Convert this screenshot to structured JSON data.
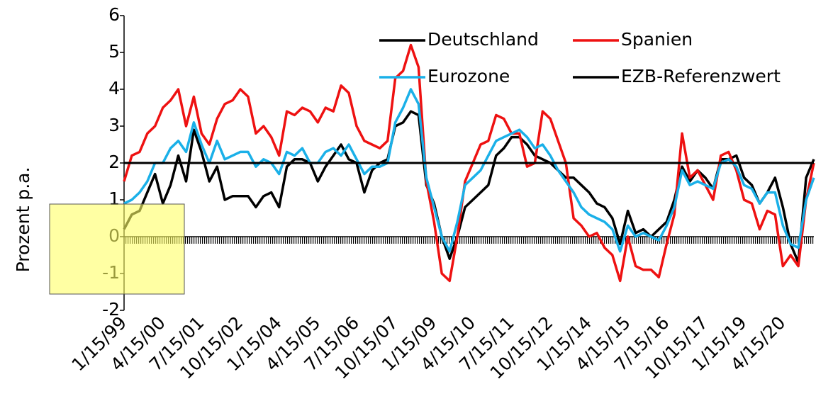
{
  "chart_data": {
    "type": "line",
    "y_label": "Prozent p.a.",
    "categories": [
      "1/15/99",
      null,
      null,
      null,
      null,
      "4/15/00",
      null,
      null,
      null,
      null,
      "7/15/01",
      null,
      null,
      null,
      null,
      "10/15/02",
      null,
      null,
      null,
      null,
      "1/15/04",
      null,
      null,
      null,
      null,
      "4/15/05",
      null,
      null,
      null,
      null,
      "7/15/06",
      null,
      null,
      null,
      null,
      "10/15/07",
      null,
      null,
      null,
      null,
      "1/15/09",
      null,
      null,
      null,
      null,
      "4/15/10",
      null,
      null,
      null,
      null,
      "7/15/11",
      null,
      null,
      null,
      null,
      "10/15/12",
      null,
      null,
      null,
      null,
      "1/15/14",
      null,
      null,
      null,
      null,
      "4/15/15",
      null,
      null,
      null,
      null,
      "7/15/16",
      null,
      null,
      null,
      null,
      "10/15/17",
      null,
      null,
      null,
      null,
      "1/15/19",
      null,
      null,
      null,
      null,
      "4/15/20",
      null,
      null,
      null,
      null
    ],
    "series": [
      {
        "name": "Deutschland",
        "color": "#000000",
        "values": [
          0.2,
          0.6,
          0.7,
          1.2,
          1.7,
          0.9,
          1.4,
          2.2,
          1.5,
          2.9,
          2.3,
          1.5,
          1.9,
          1.0,
          1.1,
          1.1,
          1.1,
          0.8,
          1.1,
          1.2,
          0.8,
          1.9,
          2.1,
          2.1,
          2.0,
          1.5,
          1.9,
          2.2,
          2.5,
          2.1,
          2.0,
          1.2,
          1.8,
          2.0,
          2.1,
          3.0,
          3.1,
          3.4,
          3.3,
          1.4,
          0.9,
          0.0,
          -0.6,
          0.0,
          0.8,
          1.0,
          1.2,
          1.4,
          2.2,
          2.4,
          2.7,
          2.7,
          2.5,
          2.2,
          2.1,
          2.0,
          1.8,
          1.6,
          1.6,
          1.4,
          1.2,
          0.9,
          0.8,
          0.5,
          -0.2,
          0.7,
          0.1,
          0.2,
          0.0,
          0.2,
          0.4,
          1.0,
          1.9,
          1.5,
          1.8,
          1.6,
          1.3,
          2.1,
          2.1,
          2.2,
          1.6,
          1.4,
          0.9,
          1.2,
          1.6,
          0.8,
          -0.2,
          -0.7,
          1.6,
          2.1
        ]
      },
      {
        "name": "Spanien",
        "color": "#ee1111",
        "values": [
          1.5,
          2.2,
          2.3,
          2.8,
          3.0,
          3.5,
          3.7,
          4.0,
          3.0,
          3.8,
          2.8,
          2.5,
          3.2,
          3.6,
          3.7,
          4.0,
          3.8,
          2.8,
          3.0,
          2.7,
          2.2,
          3.4,
          3.3,
          3.5,
          3.4,
          3.1,
          3.5,
          3.4,
          4.1,
          3.9,
          3.0,
          2.6,
          2.5,
          2.4,
          2.6,
          4.3,
          4.5,
          5.2,
          4.6,
          1.5,
          0.4,
          -1.0,
          -1.2,
          0.0,
          1.5,
          2.0,
          2.5,
          2.6,
          3.3,
          3.2,
          2.8,
          2.8,
          1.9,
          2.0,
          3.4,
          3.2,
          2.6,
          2.0,
          0.5,
          0.3,
          0.0,
          0.1,
          -0.3,
          -0.5,
          -1.2,
          0.0,
          -0.8,
          -0.9,
          -0.9,
          -1.1,
          -0.2,
          0.6,
          2.8,
          1.6,
          1.8,
          1.4,
          1.0,
          2.2,
          2.3,
          1.8,
          1.0,
          0.9,
          0.2,
          0.7,
          0.6,
          -0.8,
          -0.5,
          -0.8,
          1.0,
          2.0
        ]
      },
      {
        "name": "Eurozone",
        "color": "#1ab0e8",
        "values": [
          0.9,
          1.0,
          1.2,
          1.5,
          2.0,
          2.0,
          2.4,
          2.6,
          2.3,
          3.1,
          2.5,
          2.0,
          2.6,
          2.1,
          2.2,
          2.3,
          2.3,
          1.9,
          2.1,
          2.0,
          1.7,
          2.3,
          2.2,
          2.4,
          2.0,
          2.0,
          2.3,
          2.4,
          2.2,
          2.5,
          2.1,
          1.7,
          1.9,
          1.9,
          2.0,
          3.1,
          3.5,
          4.0,
          3.6,
          1.6,
          0.8,
          0.0,
          -0.4,
          0.4,
          1.4,
          1.6,
          1.8,
          2.2,
          2.6,
          2.7,
          2.8,
          2.9,
          2.7,
          2.4,
          2.5,
          2.2,
          1.8,
          1.5,
          1.2,
          0.8,
          0.6,
          0.5,
          0.4,
          0.2,
          -0.4,
          0.3,
          0.0,
          0.1,
          0.0,
          -0.1,
          0.3,
          0.8,
          1.8,
          1.4,
          1.5,
          1.4,
          1.3,
          2.0,
          2.1,
          1.9,
          1.4,
          1.3,
          0.9,
          1.2,
          1.2,
          0.3,
          -0.2,
          -0.3,
          1.0,
          1.6
        ]
      },
      {
        "name": "EZB-Referenzwert",
        "color": "#000000",
        "value": 2
      }
    ],
    "ylim": [
      -2,
      6
    ],
    "yticks": [
      -2,
      -1,
      0,
      1,
      2,
      3,
      4,
      5,
      6
    ]
  }
}
